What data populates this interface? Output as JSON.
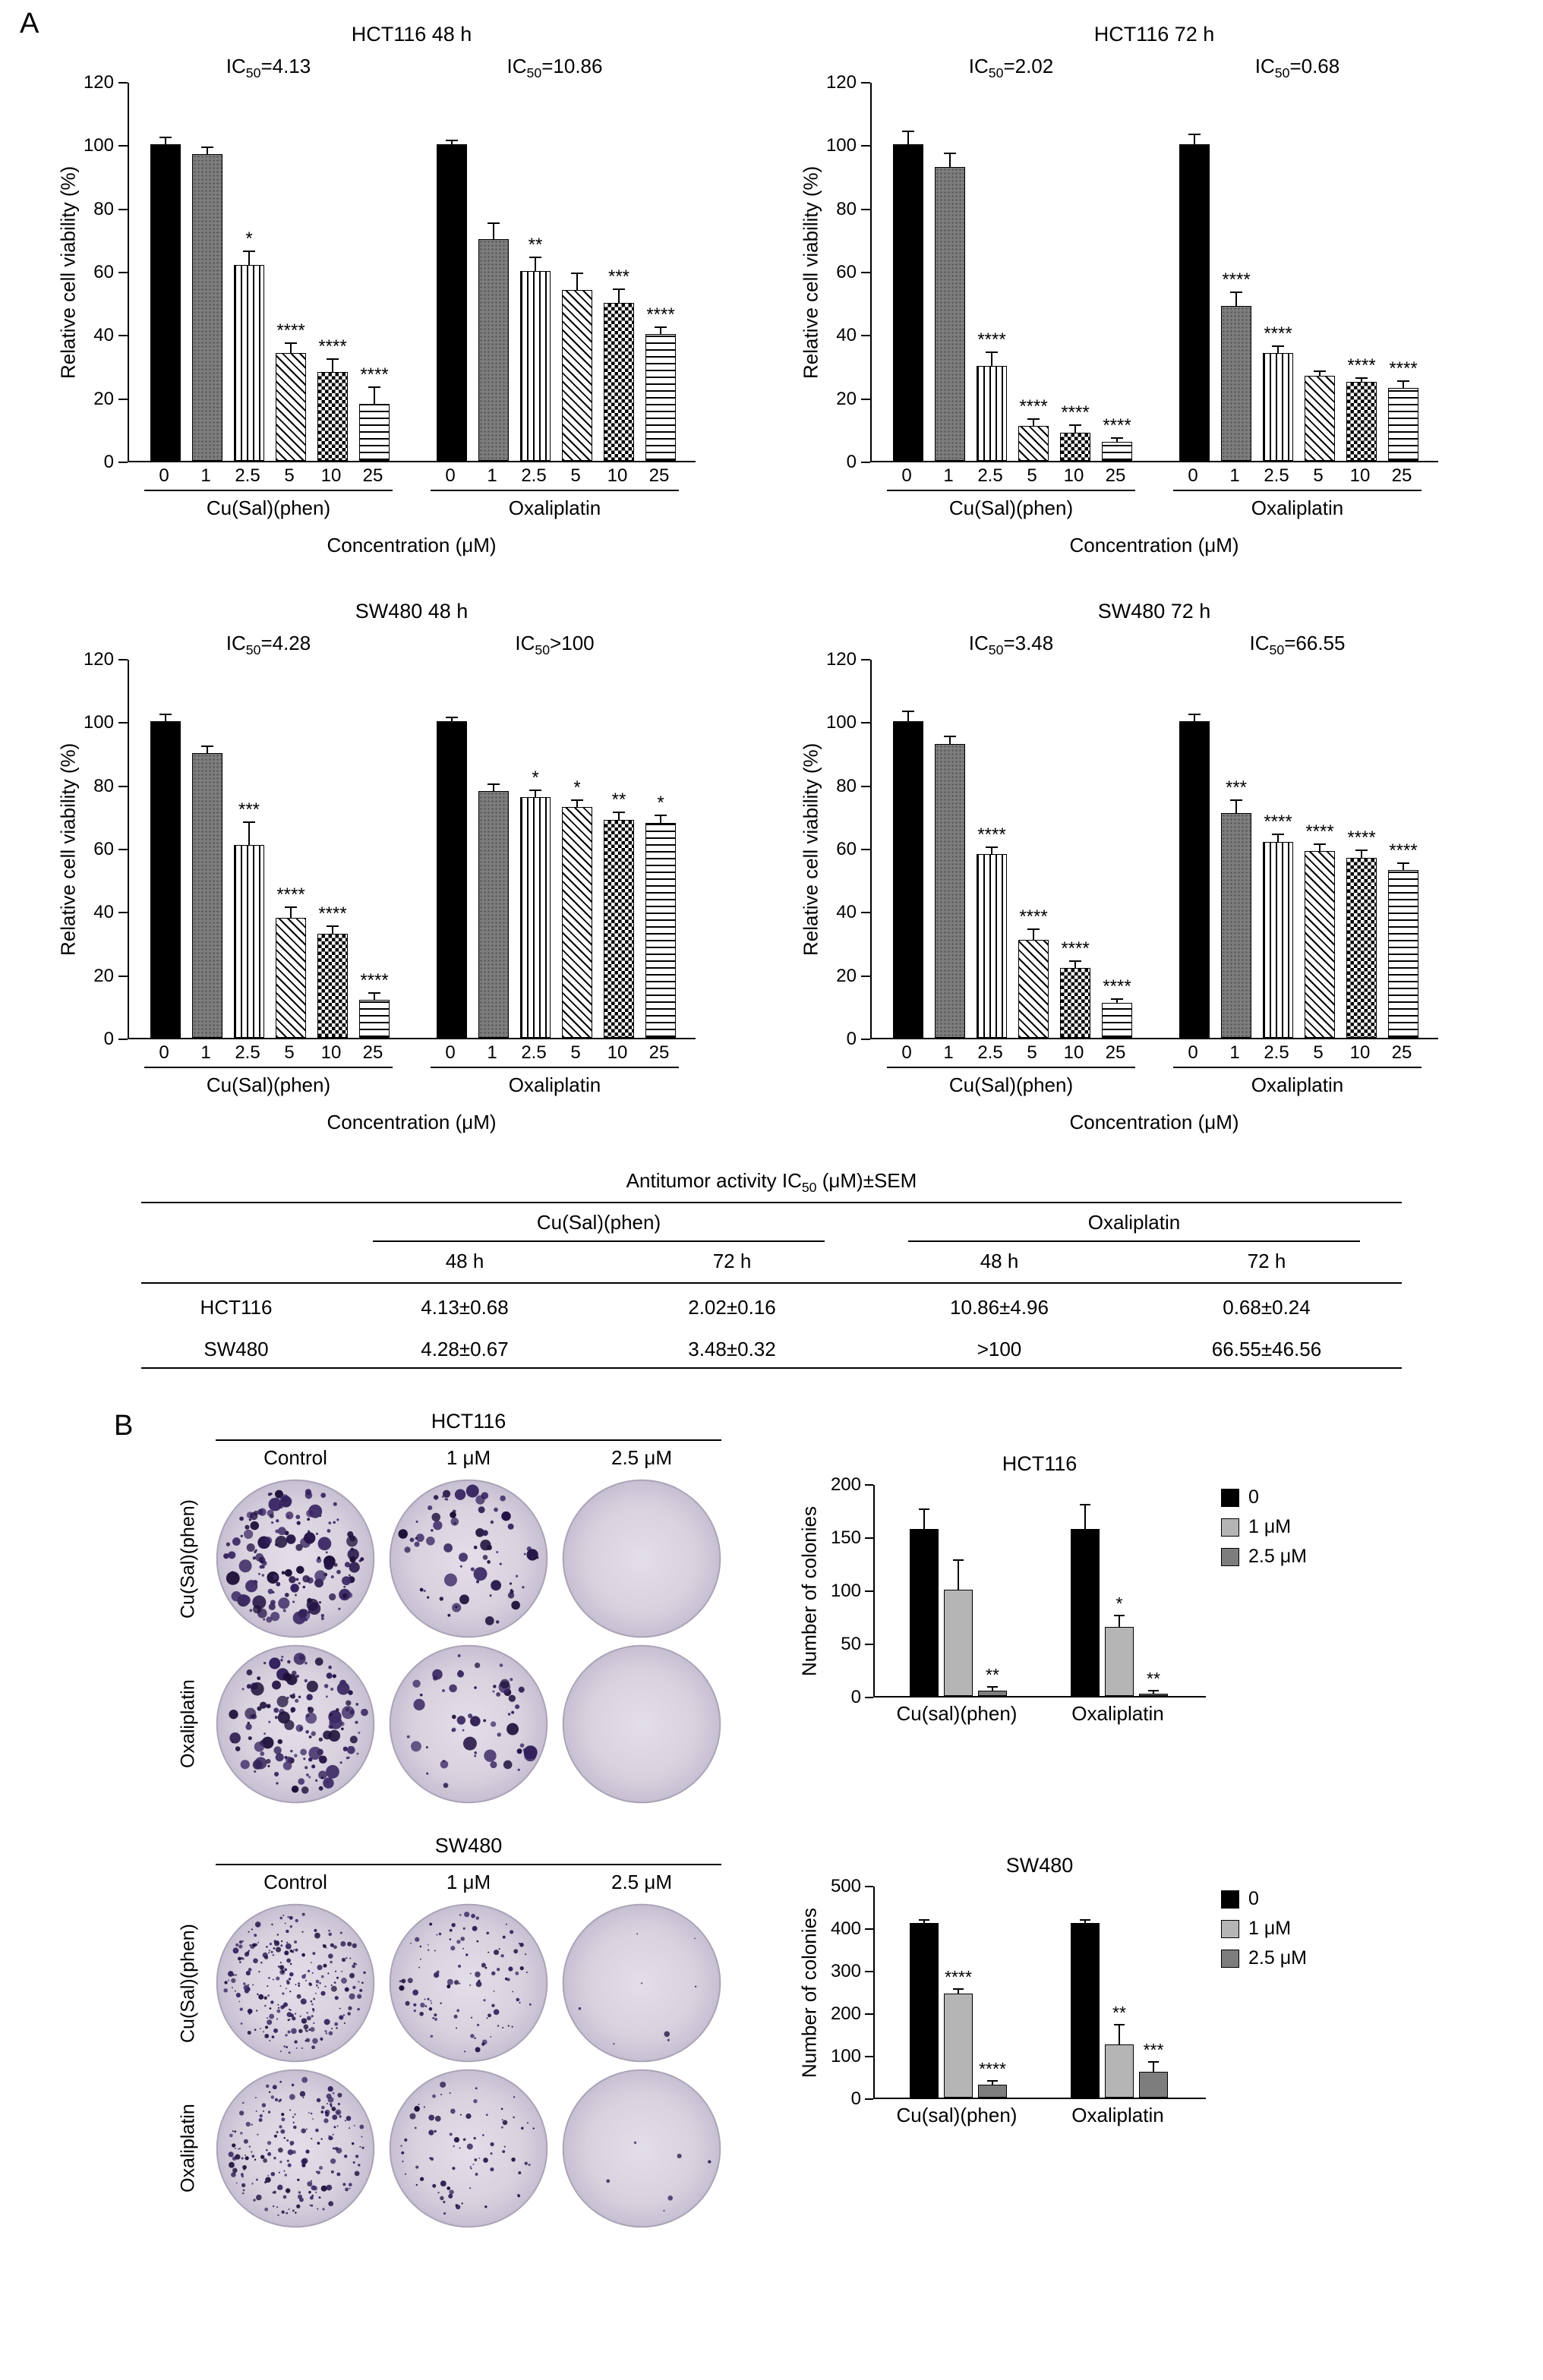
{
  "figure": {
    "panel_a_label": "A",
    "panel_b_label": "B"
  },
  "chart_data": [
    {
      "id": "hct116_48h",
      "type": "bar",
      "panel": "A",
      "title": "HCT116 48 h",
      "ylabel": "Relative cell viability (%)",
      "xlabel": "Concentration (μM)",
      "ylim": [
        0,
        120
      ],
      "yticks": [
        0,
        20,
        40,
        60,
        80,
        100,
        120
      ],
      "categories": [
        "0",
        "1",
        "2.5",
        "5",
        "10",
        "25"
      ],
      "groups": [
        {
          "name": "Cu(Sal)(phen)",
          "ic50": {
            "base": "IC",
            "sub": "50",
            "suffix": "=4.13"
          },
          "values": [
            100,
            97,
            62,
            34,
            28,
            18
          ],
          "errors": [
            2,
            2,
            4,
            3,
            4,
            5
          ],
          "sig": [
            "",
            "",
            "*",
            "****",
            "****",
            "****"
          ]
        },
        {
          "name": "Oxaliplatin",
          "ic50": {
            "base": "IC",
            "sub": "50",
            "suffix": "=10.86"
          },
          "values": [
            100,
            70,
            60,
            54,
            50,
            40
          ],
          "errors": [
            1,
            5,
            4,
            5,
            4,
            2
          ],
          "sig": [
            "",
            "",
            "**",
            "",
            "***",
            "****"
          ]
        }
      ]
    },
    {
      "id": "hct116_72h",
      "type": "bar",
      "panel": "A",
      "title": "HCT116 72 h",
      "ylabel": "Relative cell viability (%)",
      "xlabel": "Concentration (μM)",
      "ylim": [
        0,
        120
      ],
      "yticks": [
        0,
        20,
        40,
        60,
        80,
        100,
        120
      ],
      "categories": [
        "0",
        "1",
        "2.5",
        "5",
        "10",
        "25"
      ],
      "groups": [
        {
          "name": "Cu(Sal)(phen)",
          "ic50": {
            "base": "IC",
            "sub": "50",
            "suffix": "=2.02"
          },
          "values": [
            100,
            93,
            30,
            11,
            9,
            6
          ],
          "errors": [
            4,
            4,
            4,
            2,
            2,
            1
          ],
          "sig": [
            "",
            "",
            "****",
            "****",
            "****",
            "****"
          ]
        },
        {
          "name": "Oxaliplatin",
          "ic50": {
            "base": "IC",
            "sub": "50",
            "suffix": "=0.68"
          },
          "values": [
            100,
            49,
            34,
            27,
            25,
            23
          ],
          "errors": [
            3,
            4,
            2,
            1,
            1,
            2
          ],
          "sig": [
            "",
            "****",
            "****",
            "",
            "****",
            "****"
          ]
        }
      ]
    },
    {
      "id": "sw480_48h",
      "type": "bar",
      "panel": "A",
      "title": "SW480 48 h",
      "ylabel": "Relative cell viability (%)",
      "xlabel": "Concentration (μM)",
      "ylim": [
        0,
        120
      ],
      "yticks": [
        0,
        20,
        40,
        60,
        80,
        100,
        120
      ],
      "categories": [
        "0",
        "1",
        "2.5",
        "5",
        "10",
        "25"
      ],
      "groups": [
        {
          "name": "Cu(Sal)(phen)",
          "ic50": {
            "base": "IC",
            "sub": "50",
            "suffix": "=4.28"
          },
          "values": [
            100,
            90,
            61,
            38,
            33,
            12
          ],
          "errors": [
            2,
            2,
            7,
            3,
            2,
            2
          ],
          "sig": [
            "",
            "",
            "***",
            "****",
            "****",
            "****"
          ]
        },
        {
          "name": "Oxaliplatin",
          "ic50": {
            "base": "IC",
            "sub": "50",
            "suffix": ">100"
          },
          "values": [
            100,
            78,
            76,
            73,
            69,
            68
          ],
          "errors": [
            1,
            2,
            2,
            2,
            2,
            2
          ],
          "sig": [
            "",
            "",
            "*",
            "*",
            "**",
            "*"
          ]
        }
      ]
    },
    {
      "id": "sw480_72h",
      "type": "bar",
      "panel": "A",
      "title": "SW480 72 h",
      "ylabel": "Relative cell viability (%)",
      "xlabel": "Concentration (μM)",
      "ylim": [
        0,
        120
      ],
      "yticks": [
        0,
        20,
        40,
        60,
        80,
        100,
        120
      ],
      "categories": [
        "0",
        "1",
        "2.5",
        "5",
        "10",
        "25"
      ],
      "groups": [
        {
          "name": "Cu(Sal)(phen)",
          "ic50": {
            "base": "IC",
            "sub": "50",
            "suffix": "=3.48"
          },
          "values": [
            100,
            93,
            58,
            31,
            22,
            11
          ],
          "errors": [
            3,
            2,
            2,
            3,
            2,
            1
          ],
          "sig": [
            "",
            "",
            "****",
            "****",
            "****",
            "****"
          ]
        },
        {
          "name": "Oxaliplatin",
          "ic50": {
            "base": "IC",
            "sub": "50",
            "suffix": "=66.55"
          },
          "values": [
            100,
            71,
            62,
            59,
            57,
            53
          ],
          "errors": [
            2,
            4,
            2,
            2,
            2,
            2
          ],
          "sig": [
            "",
            "***",
            "****",
            "****",
            "****",
            "****"
          ]
        }
      ]
    },
    {
      "id": "colonies_hct116",
      "type": "bar",
      "panel": "B",
      "title": "HCT116",
      "ylabel": "Number of colonies",
      "ylim": [
        0,
        200
      ],
      "yticks": [
        0,
        50,
        100,
        150,
        200
      ],
      "categories": [
        "Cu(sal)(phen)",
        "Oxaliplatin"
      ],
      "legend": [
        {
          "label": "0",
          "color": "#000000"
        },
        {
          "label": "1 μM",
          "color": "#b5b5b5"
        },
        {
          "label": "2.5 μM",
          "color": "#7d7d7d"
        }
      ],
      "series": [
        {
          "name": "0",
          "color": "#000000",
          "values": [
            157,
            157
          ],
          "errors": [
            18,
            22
          ],
          "sig": [
            "",
            ""
          ]
        },
        {
          "name": "1 μM",
          "color": "#b5b5b5",
          "values": [
            100,
            65
          ],
          "errors": [
            27,
            10
          ],
          "sig": [
            "",
            "*"
          ]
        },
        {
          "name": "2.5 μM",
          "color": "#7d7d7d",
          "values": [
            5,
            2
          ],
          "errors": [
            3,
            2
          ],
          "sig": [
            "**",
            "**"
          ]
        }
      ]
    },
    {
      "id": "colonies_sw480",
      "type": "bar",
      "panel": "B",
      "title": "SW480",
      "ylabel": "Number of colonies",
      "ylim": [
        0,
        500
      ],
      "yticks": [
        0,
        100,
        200,
        300,
        400,
        500
      ],
      "categories": [
        "Cu(sal)(phen)",
        "Oxaliplatin"
      ],
      "legend": [
        {
          "label": "0",
          "color": "#000000"
        },
        {
          "label": "1 μM",
          "color": "#b5b5b5"
        },
        {
          "label": "2.5 μM",
          "color": "#7d7d7d"
        }
      ],
      "series": [
        {
          "name": "0",
          "color": "#000000",
          "values": [
            410,
            410
          ],
          "errors": [
            6,
            6
          ],
          "sig": [
            "",
            ""
          ]
        },
        {
          "name": "1 μM",
          "color": "#b5b5b5",
          "values": [
            245,
            125
          ],
          "errors": [
            8,
            45
          ],
          "sig": [
            "****",
            "**"
          ]
        },
        {
          "name": "2.5 μM",
          "color": "#7d7d7d",
          "values": [
            30,
            60
          ],
          "errors": [
            8,
            22
          ],
          "sig": [
            "****",
            "***"
          ]
        }
      ]
    }
  ],
  "table": {
    "title_base": "Antitumor activity IC",
    "title_sub": "50",
    "title_suffix": " (μM)±SEM",
    "col_groups": [
      "Cu(Sal)(phen)",
      "Oxaliplatin"
    ],
    "sub_cols": [
      "48 h",
      "72 h",
      "48 h",
      "72 h"
    ],
    "rows": [
      {
        "name": "HCT116",
        "values": [
          "4.13±0.68",
          "2.02±0.16",
          "10.86±4.96",
          "0.68±0.24"
        ]
      },
      {
        "name": "SW480",
        "values": [
          "4.28±0.67",
          "3.48±0.32",
          ">100",
          "66.55±46.56"
        ]
      }
    ]
  },
  "colony_assay": {
    "dish_colors": {
      "base": "#d8d2df",
      "edge": "#aaa2b5",
      "colony": "#2a1b4e"
    },
    "blocks": [
      {
        "title": "HCT116",
        "col_headers": [
          "Control",
          "1 μM",
          "2.5 μM"
        ],
        "rows": [
          {
            "name": "Cu(Sal)(phen)",
            "dishes": [
              {
                "colonies": 150,
                "size": "large"
              },
              {
                "colonies": 70,
                "size": "large"
              },
              {
                "colonies": 0,
                "size": "large"
              }
            ]
          },
          {
            "name": "Oxaliplatin",
            "dishes": [
              {
                "colonies": 140,
                "size": "large"
              },
              {
                "colonies": 55,
                "size": "large"
              },
              {
                "colonies": 0,
                "size": "large"
              }
            ]
          }
        ]
      },
      {
        "title": "SW480",
        "col_headers": [
          "Control",
          "1 μM",
          "2.5 μM"
        ],
        "rows": [
          {
            "name": "Cu(Sal)(phen)",
            "dishes": [
              {
                "colonies": 260,
                "size": "small"
              },
              {
                "colonies": 110,
                "size": "small"
              },
              {
                "colonies": 8,
                "size": "small"
              }
            ]
          },
          {
            "name": "Oxaliplatin",
            "dishes": [
              {
                "colonies": 200,
                "size": "small"
              },
              {
                "colonies": 80,
                "size": "small"
              },
              {
                "colonies": 6,
                "size": "small"
              }
            ]
          }
        ]
      }
    ]
  }
}
